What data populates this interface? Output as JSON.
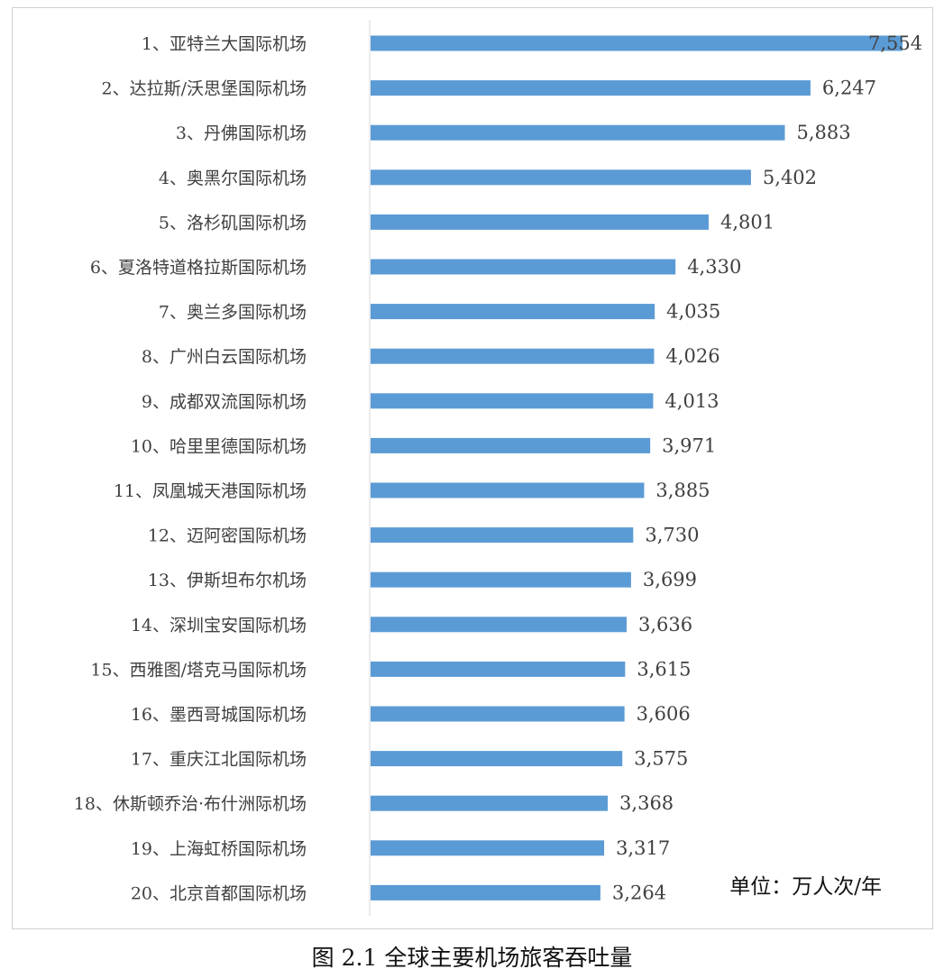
{
  "chart_data": {
    "type": "bar",
    "orientation": "horizontal",
    "categories": [
      "1、亚特兰大国际机场",
      "2、达拉斯/沃思堡国际机场",
      "3、丹佛国际机场",
      "4、奥黑尔国际机场",
      "5、洛杉矶国际机场",
      "6、夏洛特道格拉斯国际机场",
      "7、奥兰多国际机场",
      "8、广州白云国际机场",
      "9、成都双流国际机场",
      "10、哈里里德国际机场",
      "11、凤凰城天港国际机场",
      "12、迈阿密国际机场",
      "13、伊斯坦布尔机场",
      "14、深圳宝安国际机场",
      "15、西雅图/塔克马国际机场",
      "16、墨西哥城国际机场",
      "17、重庆江北国际机场",
      "18、休斯顿乔治·布什洲际机场",
      "19、上海虹桥国际机场",
      "20、北京首都国际机场"
    ],
    "values": [
      7554,
      6247,
      5883,
      5402,
      4801,
      4330,
      4035,
      4026,
      4013,
      3971,
      3885,
      3730,
      3699,
      3636,
      3615,
      3606,
      3575,
      3368,
      3317,
      3264
    ],
    "value_labels": [
      "7,554",
      "6,247",
      "5,883",
      "5,402",
      "4,801",
      "4,330",
      "4,035",
      "4,026",
      "4,013",
      "3,971",
      "3,885",
      "3,730",
      "3,699",
      "3,636",
      "3,615",
      "3,606",
      "3,575",
      "3,368",
      "3,317",
      "3,264"
    ],
    "xlim": [
      0,
      7554
    ],
    "grid": false,
    "bar_color": "#5b9bd5",
    "axis_color": "#d9d9d9"
  },
  "unit_note": "单位：万人次/年",
  "caption": "图 2.1 全球主要机场旅客吞吐量"
}
